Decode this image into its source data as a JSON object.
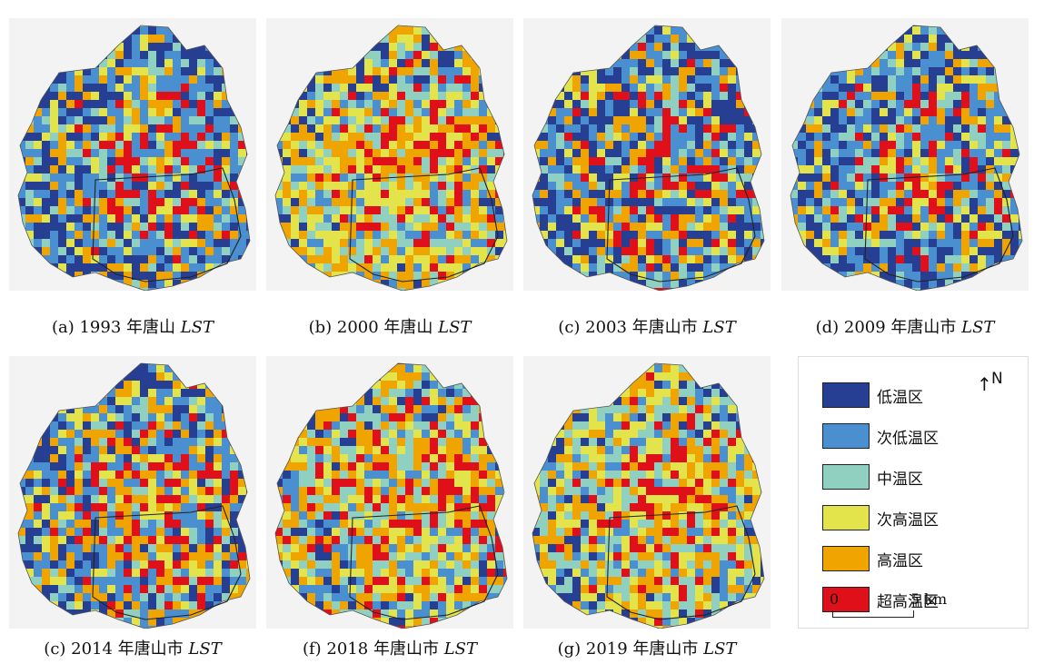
{
  "panels": [
    {
      "caption_prefix": "(a) 1993 年唐山 ",
      "caption_lst": "LST",
      "dominant": [
        0.22,
        0.3,
        0.14,
        0.12,
        0.14,
        0.08
      ]
    },
    {
      "caption_prefix": "(b) 2000 年唐山 ",
      "caption_lst": "LST",
      "dominant": [
        0.05,
        0.14,
        0.18,
        0.25,
        0.26,
        0.12
      ]
    },
    {
      "caption_prefix": "(c) 2003 年唐山市 ",
      "caption_lst": "LST",
      "dominant": [
        0.3,
        0.22,
        0.12,
        0.1,
        0.14,
        0.12
      ]
    },
    {
      "caption_prefix": "(d) 2009 年唐山市 ",
      "caption_lst": "LST",
      "dominant": [
        0.26,
        0.24,
        0.14,
        0.12,
        0.14,
        0.1
      ]
    },
    {
      "caption_prefix": "(c) 2014 年唐山市 ",
      "caption_lst": "LST",
      "dominant": [
        0.18,
        0.24,
        0.1,
        0.14,
        0.2,
        0.14
      ]
    },
    {
      "caption_prefix": "(f) 2018 年唐山市 ",
      "caption_lst": "LST",
      "dominant": [
        0.06,
        0.14,
        0.2,
        0.18,
        0.26,
        0.16
      ]
    },
    {
      "caption_prefix": "(g) 2019 年唐山市 ",
      "caption_lst": "LST",
      "dominant": [
        0.06,
        0.14,
        0.26,
        0.2,
        0.22,
        0.12
      ]
    }
  ],
  "legend": {
    "items": [
      {
        "label": "低温区",
        "color": "#263f93"
      },
      {
        "label": "次低温区",
        "color": "#4a8fd0"
      },
      {
        "label": "中温区",
        "color": "#8fd0c0"
      },
      {
        "label": "次高温区",
        "color": "#e3e34b"
      },
      {
        "label": "高温区",
        "color": "#f0a400"
      },
      {
        "label": "超高温区",
        "color": "#e0101a"
      }
    ],
    "north_label": "N",
    "scale_start": "0",
    "scale_end": "5 km"
  }
}
